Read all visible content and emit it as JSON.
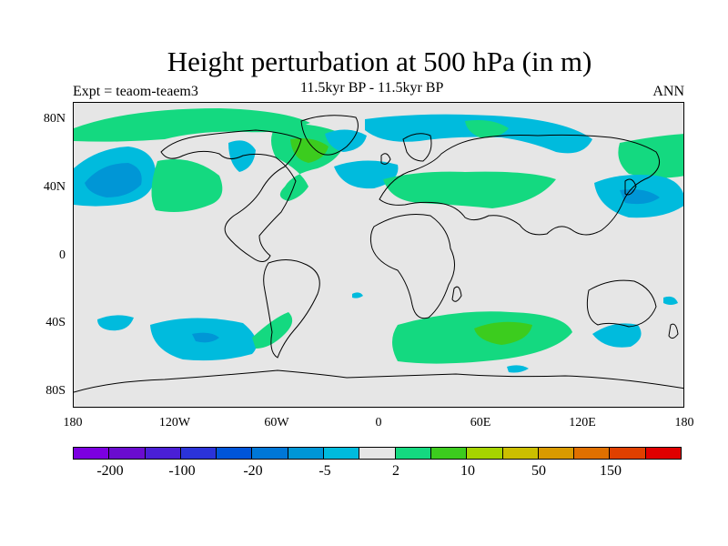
{
  "title": "Height perturbation at 500 hPa (in m)",
  "subtitle": "11.5kyr BP - 11.5kyr BP",
  "left_label": "Expt = teaom-teaem3",
  "right_label": "ANN",
  "lat_ticks": [
    "80N",
    "40N",
    "0",
    "40S",
    "80S"
  ],
  "lon_ticks": [
    "180",
    "120W",
    "60W",
    "0",
    "60E",
    "120E",
    "180"
  ],
  "colorbar": {
    "colors": [
      "#7c00e0",
      "#6a0ccf",
      "#4a1fd6",
      "#2b33d9",
      "#0055d9",
      "#0077d7",
      "#0096d6",
      "#00bbdd",
      "#e6e6e6",
      "#14d980",
      "#3ccc1e",
      "#a6d400",
      "#ccbf00",
      "#d99a00",
      "#e07000",
      "#e04000",
      "#e00000"
    ],
    "labels": [
      "-200",
      "-100",
      "-20",
      "-5",
      "2",
      "10",
      "50",
      "150"
    ]
  },
  "colors": {
    "cyan": "#00bbdd",
    "green": "#14d980",
    "bright_green": "#3ccc1e",
    "background": "#e6e6e6"
  }
}
